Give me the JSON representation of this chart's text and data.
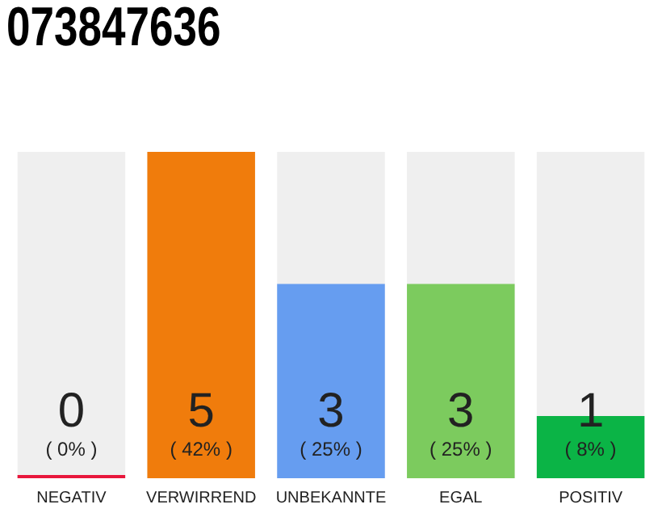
{
  "chart_data": {
    "type": "bar",
    "title": "073847636",
    "categories": [
      "NEGATIV",
      "VERWIRREND",
      "UNBEKANNTE",
      "EGAL",
      "POSITIV"
    ],
    "values": [
      0,
      42,
      25,
      25,
      8
    ],
    "colors": [
      "#e8173c",
      "#f07c0c",
      "#669df0",
      "#7ccb5e",
      "#0bb446"
    ],
    "tick_labels": "x",
    "grid": false,
    "legend": false,
    "value_labels": [
      "( 0% )",
      "( 42% )",
      "( 25% )",
      "( 25% )",
      "( 8% )"
    ],
    "annotations": [
      "0",
      "5",
      "3",
      "3",
      "1"
    ]
  }
}
